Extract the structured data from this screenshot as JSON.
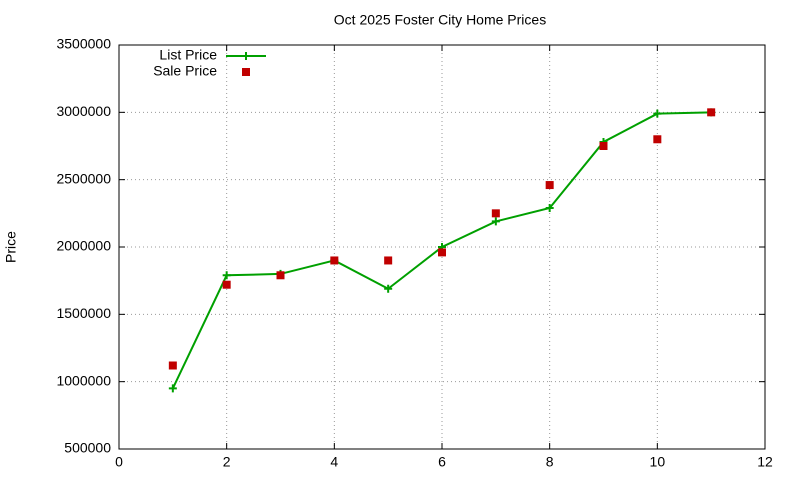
{
  "chart_data": {
    "type": "line",
    "title": "Oct 2025 Foster City Home Prices",
    "y_label": "Price",
    "x": [
      1,
      2,
      3,
      4,
      5,
      6,
      7,
      8,
      9,
      10,
      11
    ],
    "series": [
      {
        "name": "List Price",
        "color": "#00a000",
        "marker": "plus",
        "line": true,
        "values": [
          950000,
          1790000,
          1800000,
          1900000,
          1690000,
          2000000,
          2190000,
          2290000,
          2780000,
          2990000,
          3000000
        ]
      },
      {
        "name": "Sale Price",
        "color": "#c00000",
        "marker": "square",
        "line": false,
        "values": [
          1120000,
          1720000,
          1790000,
          1900000,
          1900000,
          1960000,
          2250000,
          2460000,
          2750000,
          2800000,
          3000000
        ]
      }
    ],
    "xlim": [
      0,
      12
    ],
    "xticks": [
      0,
      2,
      4,
      6,
      8,
      10,
      12
    ],
    "ylim": [
      500000,
      3500000
    ],
    "yticks": [
      500000,
      1000000,
      1500000,
      2000000,
      2500000,
      3000000,
      3500000
    ],
    "grid": true,
    "legend": "top-left"
  }
}
